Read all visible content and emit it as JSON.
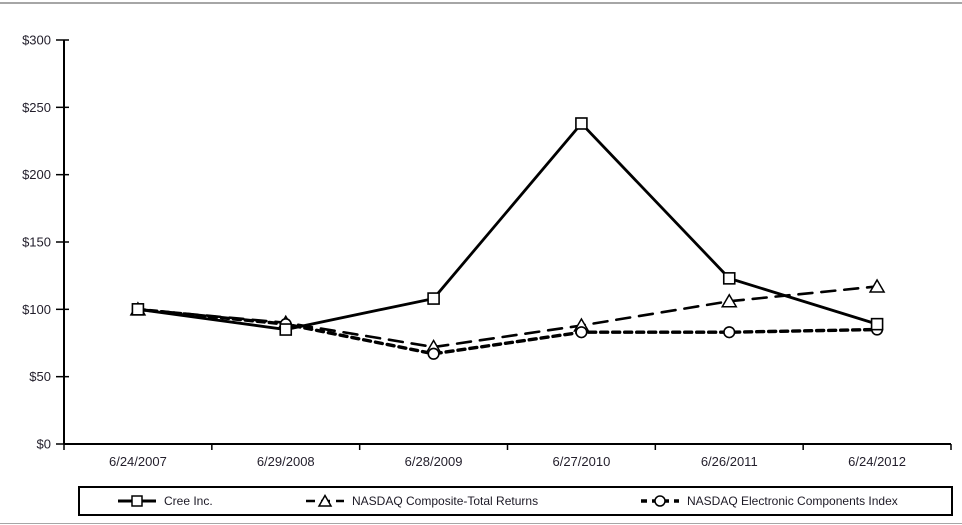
{
  "colors": {
    "line": "#000000",
    "axis": "#000000",
    "text": "#221e2b",
    "marker_fill": "#ffffff",
    "background": "#ffffff",
    "frame_rule": "#a6a6a6"
  },
  "chart_data": {
    "type": "line",
    "title": "",
    "xlabel": "",
    "ylabel": "",
    "x": [
      "6/24/2007",
      "6/29/2008",
      "6/28/2009",
      "6/27/2010",
      "6/26/2011",
      "6/24/2012"
    ],
    "y_ticks": [
      "$0",
      "$50",
      "$100",
      "$150",
      "$200",
      "$250",
      "$300"
    ],
    "y_tick_step": 50,
    "ylim": [
      0,
      300
    ],
    "grid": false,
    "legend_position": "bottom",
    "series": [
      {
        "name": "Cree Inc.",
        "marker": "square",
        "line": "solid",
        "color": "#000000",
        "values": [
          100,
          85,
          108,
          238,
          123,
          89
        ]
      },
      {
        "name": "NASDAQ Composite-Total Returns",
        "marker": "triangle",
        "line": "dashed",
        "color": "#000000",
        "values": [
          100,
          90,
          72,
          88,
          106,
          117
        ]
      },
      {
        "name": "NASDAQ Electronic Components Index",
        "marker": "circle",
        "line": "short-dash",
        "color": "#000000",
        "values": [
          100,
          89,
          67,
          83,
          83,
          85
        ]
      }
    ]
  }
}
